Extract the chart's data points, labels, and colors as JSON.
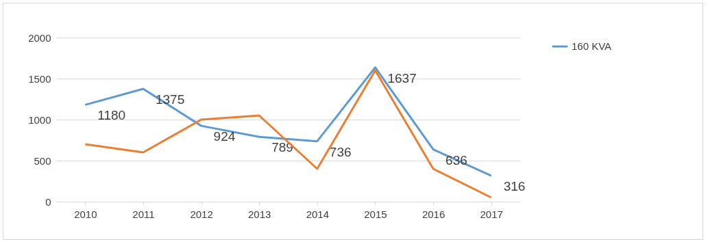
{
  "chart_data": {
    "type": "line",
    "categories": [
      "2010",
      "2011",
      "2012",
      "2013",
      "2014",
      "2015",
      "2016",
      "2017"
    ],
    "series": [
      {
        "name": "160 KVA",
        "color": "#5b9bd5",
        "values": [
          1180,
          1375,
          924,
          789,
          736,
          1637,
          636,
          316
        ],
        "value_labels": [
          "1180",
          "1375",
          "924",
          "789",
          "736",
          "1637",
          "636",
          "316"
        ]
      },
      {
        "color": "#ed7d31",
        "values": [
          700,
          600,
          1000,
          1050,
          400,
          1600,
          400,
          50
        ]
      }
    ],
    "ylim": [
      0,
      2000
    ],
    "yticks": [
      0,
      500,
      1000,
      1500,
      2000
    ],
    "grid": "y",
    "legend": "right",
    "marker": "none",
    "line_style": "solid"
  }
}
